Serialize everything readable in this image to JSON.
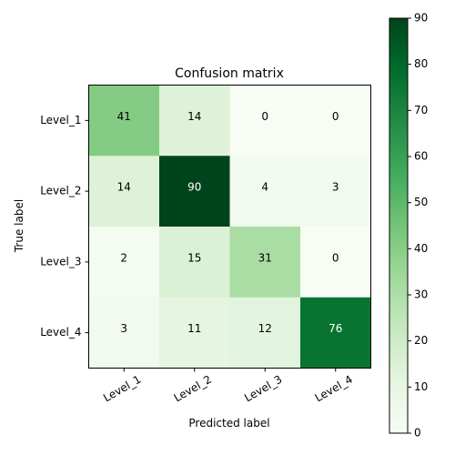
{
  "chart_data": {
    "type": "heatmap",
    "title": "Confusion matrix",
    "xlabel": "Predicted label",
    "ylabel": "True label",
    "x_categories": [
      "Level_1",
      "Level_2",
      "Level_3",
      "Level_4"
    ],
    "y_categories": [
      "Level_1",
      "Level_2",
      "Level_3",
      "Level_4"
    ],
    "values": [
      [
        41,
        14,
        0,
        0
      ],
      [
        14,
        90,
        4,
        3
      ],
      [
        2,
        15,
        31,
        0
      ],
      [
        3,
        11,
        12,
        76
      ]
    ],
    "colorbar": {
      "range": [
        0,
        90
      ],
      "ticks": [
        0,
        10,
        20,
        30,
        40,
        50,
        60,
        70,
        80,
        90
      ]
    },
    "colormap": "Greens",
    "colors": {
      "low": "#f7fcf5",
      "high": "#00441b",
      "text_dark": "#000000",
      "text_light": "#ffffff"
    }
  }
}
